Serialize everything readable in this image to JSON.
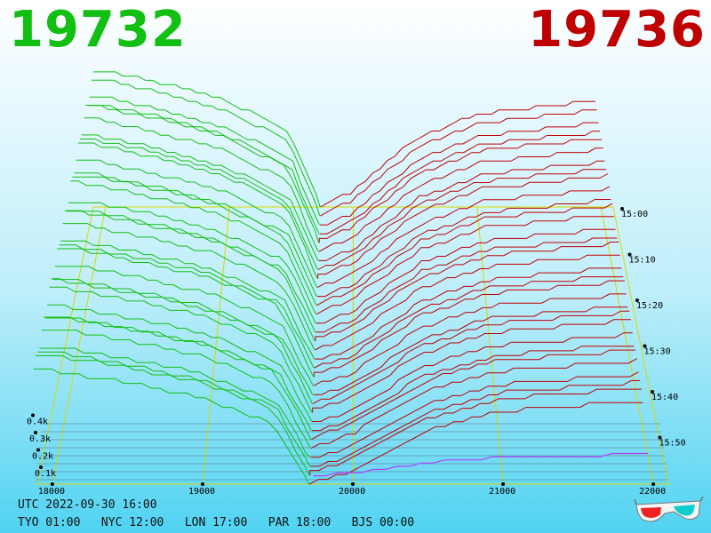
{
  "prices": {
    "bid": "19732",
    "ask": "19736"
  },
  "colors": {
    "bid": "#13bf13",
    "ask": "#bf0000",
    "grid": "#d8d800",
    "current_book": "#b040ff"
  },
  "chart_data": {
    "type": "3d-depth-of-market",
    "x_axis": {
      "ticks": [
        "18000",
        "19000",
        "20000",
        "21000",
        "22000"
      ],
      "range": [
        17900,
        22100
      ]
    },
    "y_axis": {
      "ticks": [
        "0.1k",
        "0.2k",
        "0.3k",
        "0.4k"
      ],
      "range": [
        0,
        450
      ]
    },
    "time_axis": {
      "ticks": [
        "15:00",
        "15:10",
        "15:20",
        "15:30",
        "15:40",
        "15:50"
      ]
    },
    "best_bid": 19732,
    "best_ask": 19736,
    "series": [
      {
        "side": "bid",
        "x": [
          18000,
          18500,
          19000,
          19500,
          19732
        ],
        "cum_volume": [
          380,
          340,
          290,
          200,
          0
        ]
      },
      {
        "side": "ask",
        "x": [
          19736,
          20000,
          20500,
          21000,
          22000
        ],
        "cum_volume": [
          0,
          40,
          190,
          260,
          300
        ]
      }
    ]
  },
  "footer": {
    "utc": "UTC 2022-09-30 16:00",
    "zones": "TYO 01:00   NYC 12:00   LON 17:00   PAR 18:00   BJS 00:00"
  }
}
